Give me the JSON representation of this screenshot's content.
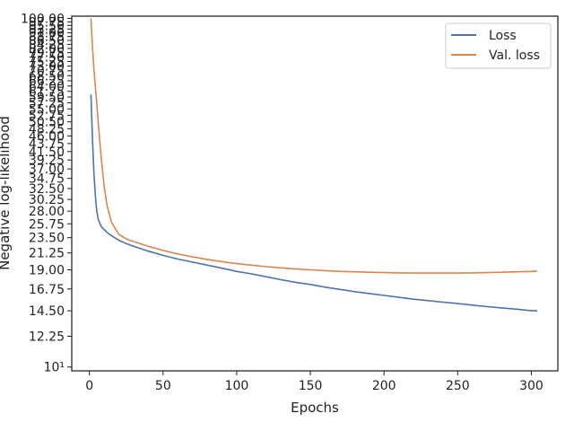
{
  "chart_data": {
    "type": "line",
    "title": "",
    "xlabel": "Epochs",
    "ylabel": "Negative log-likelihood",
    "xlim": [
      -12,
      318
    ],
    "ylim": [
      9.75,
      101.5
    ],
    "yscale": "log",
    "grid": false,
    "legend_position": "top-right",
    "x_ticks": [
      0,
      50,
      100,
      150,
      200,
      250,
      300
    ],
    "y_tick_labels": [
      "10¹",
      "12.25",
      "14.50",
      "16.75",
      "19.00",
      "21.25",
      "23.50",
      "25.75",
      "28.00",
      "30.25",
      "32.50",
      "34.75",
      "37.00",
      "39.25",
      "41.50",
      "43.75",
      "46.00",
      "48.25",
      "50.50",
      "52.75",
      "55.00",
      "57.25",
      "59.50",
      "61.75",
      "64.00",
      "66.25",
      "68.50",
      "70.75",
      "73.00",
      "75.25",
      "77.50",
      "79.75",
      "82.00",
      "84.25",
      "86.50",
      "88.75",
      "91.00",
      "93.25",
      "95.50",
      "97.75",
      "100.00"
    ],
    "y_tick_values": [
      10,
      12.25,
      14.5,
      16.75,
      19,
      21.25,
      23.5,
      25.75,
      28,
      30.25,
      32.5,
      34.75,
      37,
      39.25,
      41.5,
      43.75,
      46,
      48.25,
      50.5,
      52.75,
      55,
      57.25,
      59.5,
      61.75,
      64,
      66.25,
      68.5,
      70.75,
      73,
      75.25,
      77.5,
      79.75,
      82,
      84.25,
      86.5,
      88.75,
      91,
      93.25,
      95.5,
      97.75,
      100
    ],
    "series": [
      {
        "name": "Loss",
        "color": "#4c72b0",
        "x": [
          1,
          2,
          3,
          4,
          5,
          6,
          8,
          10,
          12,
          15,
          20,
          25,
          30,
          40,
          50,
          60,
          70,
          80,
          90,
          100,
          110,
          120,
          130,
          140,
          150,
          160,
          170,
          180,
          190,
          200,
          210,
          220,
          230,
          240,
          250,
          260,
          270,
          280,
          290,
          300,
          304
        ],
        "y": [
          60.5,
          46,
          36.5,
          31,
          28,
          26.5,
          25.3,
          24.8,
          24.3,
          23.8,
          23.1,
          22.6,
          22.2,
          21.5,
          20.9,
          20.4,
          20.0,
          19.6,
          19.2,
          18.8,
          18.5,
          18.15,
          17.8,
          17.5,
          17.25,
          16.95,
          16.7,
          16.45,
          16.25,
          16.05,
          15.85,
          15.65,
          15.5,
          15.35,
          15.2,
          15.05,
          14.9,
          14.78,
          14.65,
          14.5,
          14.5
        ]
      },
      {
        "name": "Val. loss",
        "color": "#dd8452",
        "x": [
          1,
          2,
          3,
          4,
          5,
          6,
          8,
          10,
          12,
          15,
          20,
          25,
          30,
          40,
          50,
          60,
          70,
          80,
          90,
          100,
          110,
          120,
          130,
          140,
          150,
          160,
          170,
          180,
          190,
          200,
          210,
          220,
          230,
          240,
          250,
          260,
          270,
          280,
          290,
          300,
          304
        ],
        "y": [
          100,
          84,
          72,
          64,
          57,
          50,
          40,
          33,
          29,
          26,
          24,
          23.3,
          22.9,
          22.2,
          21.6,
          21.1,
          20.7,
          20.35,
          20.05,
          19.8,
          19.6,
          19.4,
          19.25,
          19.1,
          19.0,
          18.9,
          18.8,
          18.75,
          18.7,
          18.65,
          18.62,
          18.6,
          18.6,
          18.6,
          18.6,
          18.62,
          18.65,
          18.7,
          18.75,
          18.8,
          18.85
        ]
      }
    ]
  }
}
